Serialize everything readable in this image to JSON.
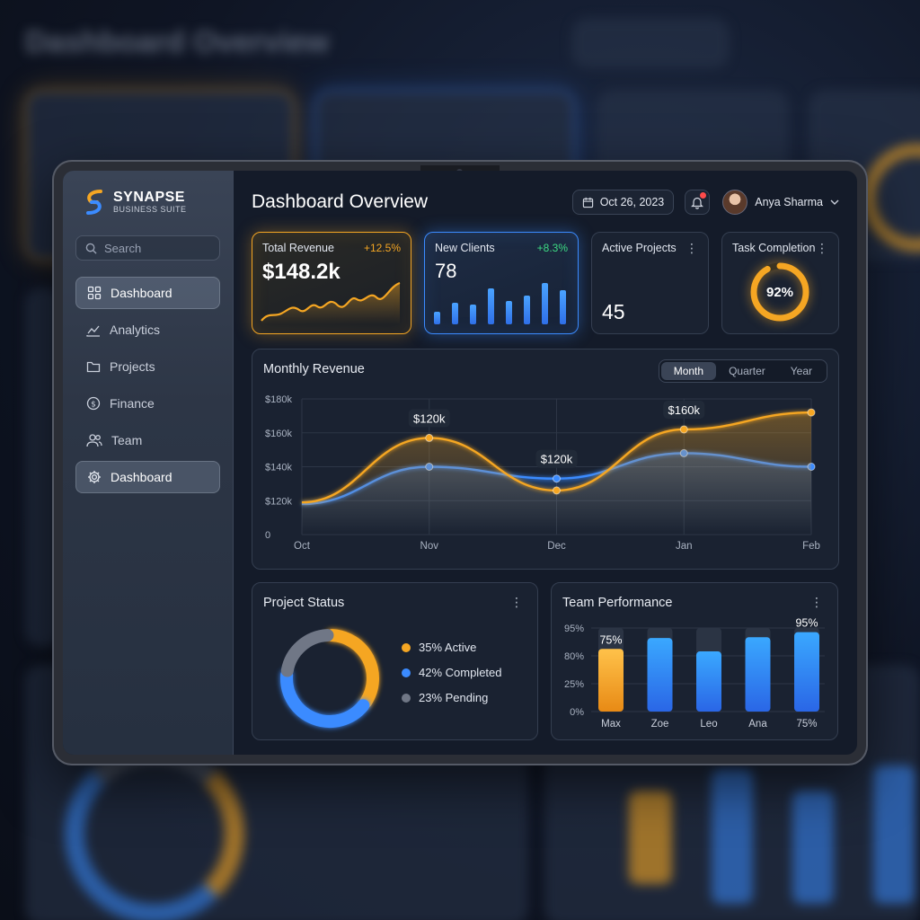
{
  "brand": {
    "name": "SYNAPSE",
    "subtitle": "BUSINESS SUITE"
  },
  "search": {
    "placeholder": "Search"
  },
  "sidebar": {
    "items": [
      {
        "label": "Dashboard",
        "icon": "grid-icon",
        "active": true
      },
      {
        "label": "Analytics",
        "icon": "line-chart-icon",
        "active": false
      },
      {
        "label": "Projects",
        "icon": "folder-icon",
        "active": false
      },
      {
        "label": "Finance",
        "icon": "dollar-circle-icon",
        "active": false
      },
      {
        "label": "Team",
        "icon": "users-icon",
        "active": false
      },
      {
        "label": "Dashboard",
        "icon": "gear-icon",
        "active": true
      }
    ]
  },
  "header": {
    "title": "Dashboard Overview",
    "date": "Oct 26, 2023",
    "notifications_badge": true,
    "user_name": "Anya Sharma"
  },
  "kpis": {
    "revenue": {
      "label": "Total Revenue",
      "delta": "+12.5%",
      "value": "$148.2k"
    },
    "clients": {
      "label": "New Clients",
      "delta": "+8.3%",
      "value": "78"
    },
    "projects": {
      "label": "Active Projects",
      "value": "45"
    },
    "tasks": {
      "label": "Task Completion",
      "value": "92%",
      "fraction": 0.92
    }
  },
  "colors": {
    "accent_orange": "#f5a623",
    "accent_blue": "#3b8bff",
    "positive": "#3ddc84",
    "pending": "#707786"
  },
  "revenue_panel": {
    "title": "Monthly Revenue",
    "tabs": [
      "Month",
      "Quarter",
      "Year"
    ],
    "active_tab": "Month"
  },
  "chart_data": [
    {
      "type": "line",
      "title": "Monthly Revenue",
      "x": [
        "Oct",
        "Nov",
        "Dec",
        "Jan",
        "Feb"
      ],
      "y_ticks": [
        "0",
        "$120k",
        "$140k",
        "$160k",
        "$180k"
      ],
      "series": [
        {
          "color": "#f5a623",
          "values": [
            114,
            157,
            126,
            162,
            172
          ]
        },
        {
          "color": "#3b8bff",
          "values": [
            108,
            140,
            133,
            148,
            140
          ]
        }
      ],
      "annotations": [
        "$120k",
        "$120k",
        "$160k"
      ],
      "grid": true
    },
    {
      "type": "pie",
      "title": "Project Status",
      "slices": [
        {
          "name": "35% Active",
          "value": 35,
          "color": "#f5a623"
        },
        {
          "name": "42% Completed",
          "value": 42,
          "color": "#3b8bff"
        },
        {
          "name": "23% Pending",
          "value": 23,
          "color": "#707786"
        }
      ]
    },
    {
      "type": "bar",
      "title": "Team Performance",
      "categories": [
        "Max",
        "Zoe",
        "Leo",
        "Ana",
        "75%"
      ],
      "values": [
        75,
        88,
        72,
        89,
        95
      ],
      "y_ticks": [
        "0%",
        "25%",
        "80%",
        "95%"
      ],
      "data_labels": [
        "75%",
        "",
        "",
        "",
        "95%"
      ],
      "ylim": [
        0,
        100
      ]
    }
  ]
}
